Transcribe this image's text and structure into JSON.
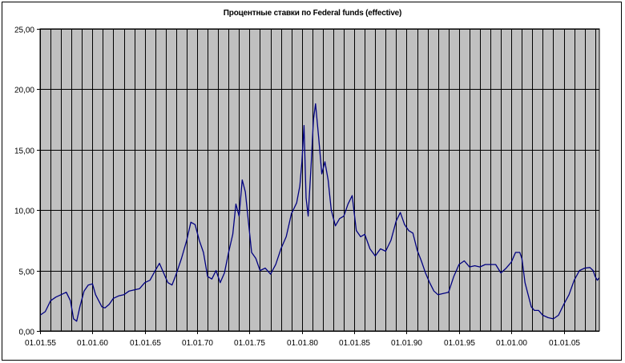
{
  "chart_data": {
    "type": "line",
    "title": "Процентные ставки по Federal funds (effective)",
    "xlabel": "",
    "ylabel": "",
    "ylim": [
      0,
      25
    ],
    "xlim": [
      1955.0,
      2008.4
    ],
    "y_ticks": [
      "0,00",
      "5,00",
      "10,00",
      "15,00",
      "20,00",
      "25,00"
    ],
    "x_ticks": [
      {
        "label": "01.01.55",
        "x": 1955
      },
      {
        "label": "01.01.60",
        "x": 1960
      },
      {
        "label": "01.01.65",
        "x": 1965
      },
      {
        "label": "01.01.70",
        "x": 1970
      },
      {
        "label": "01.01.75",
        "x": 1975
      },
      {
        "label": "01.01.80",
        "x": 1980
      },
      {
        "label": "01.01.85",
        "x": 1985
      },
      {
        "label": "01.01.90",
        "x": 1990
      },
      {
        "label": "01.01.95",
        "x": 1995
      },
      {
        "label": "01.01.00",
        "x": 2000
      },
      {
        "label": "01.01.05",
        "x": 2005
      }
    ],
    "grid": true,
    "plot_background": "#c0c0c0",
    "line_color": "#000080",
    "series": [
      {
        "name": "",
        "x": [
          1955.0,
          1955.5,
          1956.0,
          1956.5,
          1957.0,
          1957.5,
          1957.9,
          1958.2,
          1958.5,
          1958.8,
          1959.2,
          1959.6,
          1960.0,
          1960.3,
          1960.6,
          1960.9,
          1961.2,
          1961.6,
          1962.0,
          1962.5,
          1963.0,
          1963.5,
          1964.0,
          1964.5,
          1965.0,
          1965.5,
          1966.0,
          1966.4,
          1966.8,
          1967.2,
          1967.6,
          1968.0,
          1968.5,
          1969.0,
          1969.4,
          1969.8,
          1970.2,
          1970.6,
          1971.0,
          1971.4,
          1971.8,
          1972.2,
          1972.6,
          1973.0,
          1973.4,
          1973.7,
          1974.0,
          1974.3,
          1974.6,
          1974.9,
          1975.2,
          1975.6,
          1976.0,
          1976.5,
          1977.0,
          1977.5,
          1978.0,
          1978.5,
          1979.0,
          1979.5,
          1979.8,
          1980.0,
          1980.2,
          1980.4,
          1980.6,
          1980.9,
          1981.1,
          1981.3,
          1981.6,
          1981.9,
          1982.2,
          1982.5,
          1982.8,
          1983.2,
          1983.6,
          1984.0,
          1984.4,
          1984.8,
          1985.2,
          1985.6,
          1986.0,
          1986.5,
          1987.0,
          1987.5,
          1988.0,
          1988.5,
          1989.0,
          1989.4,
          1989.8,
          1990.2,
          1990.6,
          1991.0,
          1991.4,
          1991.8,
          1992.2,
          1992.6,
          1993.0,
          1993.5,
          1994.0,
          1994.5,
          1995.0,
          1995.5,
          1996.0,
          1996.5,
          1997.0,
          1997.5,
          1998.0,
          1998.5,
          1999.0,
          1999.5,
          2000.0,
          2000.4,
          2000.8,
          2001.0,
          2001.3,
          2001.6,
          2001.9,
          2002.2,
          2002.6,
          2003.0,
          2003.5,
          2004.0,
          2004.5,
          2005.0,
          2005.5,
          2006.0,
          2006.5,
          2007.0,
          2007.5,
          2007.8,
          2008.0,
          2008.2,
          2008.4
        ],
        "values": [
          1.3,
          1.6,
          2.5,
          2.8,
          3.0,
          3.2,
          2.5,
          1.0,
          0.8,
          2.0,
          3.3,
          3.8,
          3.9,
          3.0,
          2.5,
          2.0,
          1.9,
          2.2,
          2.7,
          2.9,
          3.0,
          3.3,
          3.4,
          3.5,
          4.0,
          4.2,
          5.0,
          5.6,
          4.8,
          4.0,
          3.8,
          4.7,
          6.0,
          7.5,
          9.0,
          8.8,
          7.5,
          6.5,
          4.5,
          4.3,
          5.0,
          4.0,
          4.8,
          6.5,
          8.0,
          10.5,
          9.5,
          12.5,
          11.5,
          9.0,
          6.5,
          6.0,
          5.0,
          5.2,
          4.7,
          5.5,
          6.8,
          7.8,
          9.7,
          10.6,
          12.0,
          14.0,
          17.0,
          11.0,
          9.5,
          14.0,
          17.5,
          18.8,
          16.0,
          13.0,
          14.0,
          12.5,
          10.0,
          8.7,
          9.3,
          9.5,
          10.5,
          11.2,
          8.3,
          7.8,
          8.0,
          6.8,
          6.2,
          6.8,
          6.6,
          7.5,
          9.1,
          9.8,
          8.8,
          8.3,
          8.1,
          6.7,
          5.8,
          4.8,
          4.0,
          3.3,
          3.0,
          3.1,
          3.2,
          4.5,
          5.5,
          5.8,
          5.3,
          5.4,
          5.3,
          5.5,
          5.5,
          5.5,
          4.8,
          5.2,
          5.7,
          6.5,
          6.5,
          6.0,
          4.0,
          3.0,
          2.0,
          1.7,
          1.7,
          1.3,
          1.1,
          1.0,
          1.3,
          2.2,
          3.0,
          4.2,
          5.0,
          5.2,
          5.25,
          5.0,
          4.5,
          4.2,
          4.4
        ]
      }
    ]
  }
}
